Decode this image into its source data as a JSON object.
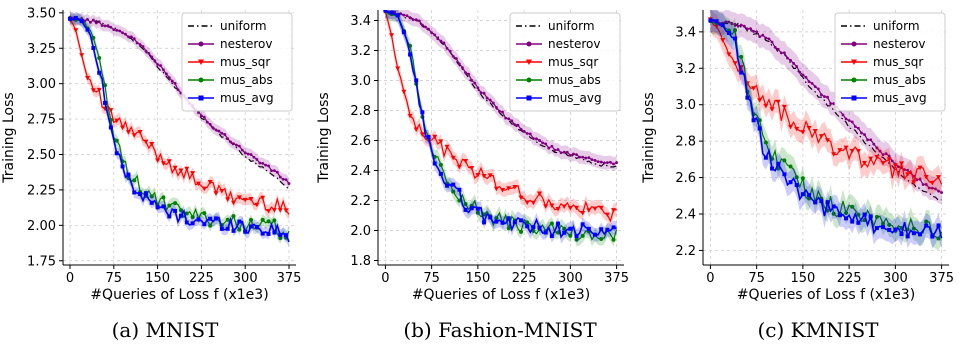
{
  "figure": {
    "captions": [
      "(a) MNIST",
      "(b) Fashion-MNIST",
      "(c) KMNIST"
    ]
  },
  "colors": {
    "uniform": "#000000",
    "nesterov": "#800080",
    "mus_sqr": "#ff0000",
    "mus_abs": "#008000",
    "mus_avg": "#0000ff",
    "grid": "#c8c8c8"
  },
  "chart_data": [
    {
      "type": "line",
      "xlabel": "#Queries of Loss f (x1e3)",
      "ylabel": "Training Loss",
      "xlim": [
        -12,
        387
      ],
      "ylim": [
        1.72,
        3.52
      ],
      "xticks": [
        0,
        75,
        150,
        225,
        300,
        375
      ],
      "yticks": [
        1.75,
        2.0,
        2.25,
        2.5,
        2.75,
        3.0,
        3.25,
        3.5
      ],
      "ytick_labels": [
        "1.75",
        "2.00",
        "2.25",
        "2.50",
        "2.75",
        "3.00",
        "3.25",
        "3.50"
      ],
      "grid": true,
      "legend_position": "top-right",
      "legend": [
        "uniform",
        "nesterov",
        "mus_sqr",
        "mus_abs",
        "mus_avg"
      ],
      "series": [
        {
          "name": "uniform",
          "x": [
            0,
            25,
            50,
            75,
            100,
            125,
            150,
            175,
            200,
            225,
            250,
            275,
            300,
            325,
            350,
            375
          ],
          "values": [
            3.46,
            3.45,
            3.43,
            3.39,
            3.33,
            3.25,
            3.12,
            3.0,
            2.88,
            2.76,
            2.67,
            2.58,
            2.49,
            2.42,
            2.35,
            2.26
          ]
        },
        {
          "name": "nesterov",
          "x": [
            0,
            25,
            50,
            75,
            100,
            125,
            150,
            175,
            200,
            225,
            250,
            275,
            300,
            325,
            350,
            375
          ],
          "values": [
            3.46,
            3.45,
            3.43,
            3.39,
            3.34,
            3.26,
            3.14,
            3.02,
            2.89,
            2.78,
            2.68,
            2.6,
            2.52,
            2.45,
            2.38,
            2.3
          ]
        },
        {
          "name": "mus_sqr",
          "x": [
            0,
            10,
            20,
            30,
            45,
            60,
            75,
            100,
            125,
            150,
            175,
            200,
            225,
            250,
            275,
            300,
            325,
            350,
            375
          ],
          "values": [
            3.46,
            3.38,
            3.2,
            3.05,
            2.95,
            2.82,
            2.75,
            2.68,
            2.6,
            2.5,
            2.42,
            2.35,
            2.3,
            2.25,
            2.2,
            2.18,
            2.16,
            2.14,
            2.12
          ]
        },
        {
          "name": "mus_abs",
          "x": [
            0,
            20,
            40,
            55,
            70,
            85,
            100,
            125,
            150,
            175,
            200,
            225,
            250,
            275,
            300,
            325,
            350,
            375
          ],
          "values": [
            3.46,
            3.45,
            3.35,
            3.05,
            2.72,
            2.52,
            2.38,
            2.25,
            2.17,
            2.12,
            2.08,
            2.06,
            2.04,
            2.02,
            2.01,
            2.0,
            1.99,
            1.91
          ]
        },
        {
          "name": "mus_avg",
          "x": [
            0,
            20,
            40,
            55,
            70,
            85,
            100,
            125,
            150,
            175,
            200,
            225,
            250,
            275,
            300,
            325,
            350,
            375
          ],
          "values": [
            3.46,
            3.45,
            3.3,
            3.0,
            2.68,
            2.45,
            2.33,
            2.2,
            2.13,
            2.08,
            2.05,
            2.03,
            2.02,
            2.01,
            1.99,
            1.98,
            1.97,
            1.92
          ]
        }
      ]
    },
    {
      "type": "line",
      "xlabel": "#Queries of Loss f (x1e3)",
      "ylabel": "Training Loss",
      "xlim": [
        -12,
        387
      ],
      "ylim": [
        1.77,
        3.47
      ],
      "xticks": [
        0,
        75,
        150,
        225,
        300,
        375
      ],
      "yticks": [
        1.8,
        2.0,
        2.2,
        2.4,
        2.6,
        2.8,
        3.0,
        3.2,
        3.4
      ],
      "ytick_labels": [
        "1.8",
        "2.0",
        "2.2",
        "2.4",
        "2.6",
        "2.8",
        "3.0",
        "3.2",
        "3.4"
      ],
      "grid": true,
      "legend_position": "top-right",
      "legend": [
        "uniform",
        "nesterov",
        "mus_sqr",
        "mus_abs",
        "mus_avg"
      ],
      "series": [
        {
          "name": "uniform",
          "x": [
            0,
            25,
            50,
            75,
            100,
            125,
            150,
            175,
            200,
            225,
            250,
            275,
            300,
            325,
            350,
            375
          ],
          "values": [
            3.46,
            3.44,
            3.4,
            3.33,
            3.22,
            3.08,
            2.93,
            2.82,
            2.73,
            2.65,
            2.58,
            2.53,
            2.5,
            2.47,
            2.44,
            2.43
          ]
        },
        {
          "name": "nesterov",
          "x": [
            0,
            25,
            50,
            75,
            100,
            125,
            150,
            175,
            200,
            225,
            250,
            275,
            300,
            325,
            350,
            375
          ],
          "values": [
            3.46,
            3.44,
            3.4,
            3.33,
            3.22,
            3.09,
            2.95,
            2.84,
            2.74,
            2.66,
            2.59,
            2.54,
            2.51,
            2.48,
            2.46,
            2.45
          ]
        },
        {
          "name": "mus_sqr",
          "x": [
            0,
            10,
            20,
            35,
            50,
            65,
            75,
            100,
            125,
            150,
            175,
            200,
            225,
            250,
            275,
            300,
            325,
            350,
            375
          ],
          "values": [
            3.46,
            3.3,
            3.08,
            2.85,
            2.72,
            2.65,
            2.6,
            2.52,
            2.45,
            2.38,
            2.33,
            2.28,
            2.24,
            2.2,
            2.17,
            2.15,
            2.14,
            2.12,
            2.11
          ]
        },
        {
          "name": "mus_abs",
          "x": [
            0,
            20,
            40,
            55,
            70,
            85,
            100,
            125,
            150,
            175,
            200,
            225,
            250,
            275,
            300,
            325,
            350,
            375
          ],
          "values": [
            3.46,
            3.43,
            3.22,
            2.88,
            2.62,
            2.45,
            2.35,
            2.22,
            2.13,
            2.08,
            2.05,
            2.03,
            2.01,
            2.0,
            1.99,
            1.97,
            1.96,
            1.97
          ]
        },
        {
          "name": "mus_avg",
          "x": [
            0,
            20,
            40,
            55,
            70,
            85,
            100,
            125,
            150,
            175,
            200,
            225,
            250,
            275,
            300,
            325,
            350,
            375
          ],
          "values": [
            3.46,
            3.43,
            3.2,
            2.85,
            2.58,
            2.42,
            2.32,
            2.2,
            2.12,
            2.07,
            2.05,
            2.03,
            2.02,
            2.01,
            2.0,
            1.99,
            1.98,
            1.99
          ]
        }
      ]
    },
    {
      "type": "line",
      "xlabel": "#Queries of Loss f (x1e3)",
      "ylabel": "Training Loss",
      "xlim": [
        -12,
        387
      ],
      "ylim": [
        2.12,
        3.52
      ],
      "xticks": [
        0,
        75,
        150,
        225,
        300,
        375
      ],
      "yticks": [
        2.2,
        2.4,
        2.6,
        2.8,
        3.0,
        3.2,
        3.4
      ],
      "ytick_labels": [
        "2.2",
        "2.4",
        "2.6",
        "2.8",
        "3.0",
        "3.2",
        "3.4"
      ],
      "grid": true,
      "legend_position": "top-right",
      "legend": [
        "uniform",
        "nesterov",
        "mus_sqr",
        "mus_abs",
        "mus_avg"
      ],
      "series": [
        {
          "name": "uniform",
          "x": [
            0,
            25,
            50,
            75,
            100,
            125,
            150,
            175,
            200,
            225,
            250,
            275,
            300,
            325,
            350,
            375
          ],
          "values": [
            3.46,
            3.45,
            3.43,
            3.39,
            3.33,
            3.25,
            3.15,
            3.05,
            2.97,
            2.88,
            2.8,
            2.72,
            2.64,
            2.57,
            2.51,
            2.48
          ]
        },
        {
          "name": "nesterov",
          "x": [
            0,
            25,
            50,
            75,
            100,
            125,
            150,
            175,
            200,
            225,
            250,
            275,
            300,
            325,
            350,
            375
          ],
          "values": [
            3.46,
            3.45,
            3.43,
            3.39,
            3.34,
            3.26,
            3.17,
            3.08,
            3.0,
            2.91,
            2.83,
            2.75,
            2.68,
            2.62,
            2.56,
            2.51
          ]
        },
        {
          "name": "mus_sqr",
          "x": [
            0,
            15,
            30,
            45,
            60,
            75,
            100,
            125,
            150,
            175,
            200,
            225,
            250,
            275,
            300,
            325,
            350,
            375
          ],
          "values": [
            3.46,
            3.4,
            3.28,
            3.2,
            3.14,
            3.08,
            3.0,
            2.93,
            2.87,
            2.82,
            2.77,
            2.73,
            2.7,
            2.67,
            2.64,
            2.62,
            2.6,
            2.58
          ]
        },
        {
          "name": "mus_abs",
          "x": [
            0,
            20,
            40,
            55,
            70,
            85,
            100,
            125,
            150,
            175,
            200,
            225,
            250,
            275,
            300,
            325,
            350,
            375
          ],
          "values": [
            3.46,
            3.44,
            3.36,
            3.18,
            2.98,
            2.83,
            2.74,
            2.63,
            2.55,
            2.49,
            2.44,
            2.41,
            2.38,
            2.36,
            2.35,
            2.34,
            2.32,
            2.31
          ]
        },
        {
          "name": "mus_avg",
          "x": [
            0,
            20,
            40,
            55,
            70,
            85,
            100,
            125,
            150,
            175,
            200,
            225,
            250,
            275,
            300,
            325,
            350,
            375
          ],
          "values": [
            3.46,
            3.44,
            3.34,
            3.14,
            2.93,
            2.78,
            2.69,
            2.58,
            2.5,
            2.45,
            2.4,
            2.37,
            2.35,
            2.33,
            2.32,
            2.31,
            2.3,
            2.29
          ]
        }
      ]
    }
  ]
}
